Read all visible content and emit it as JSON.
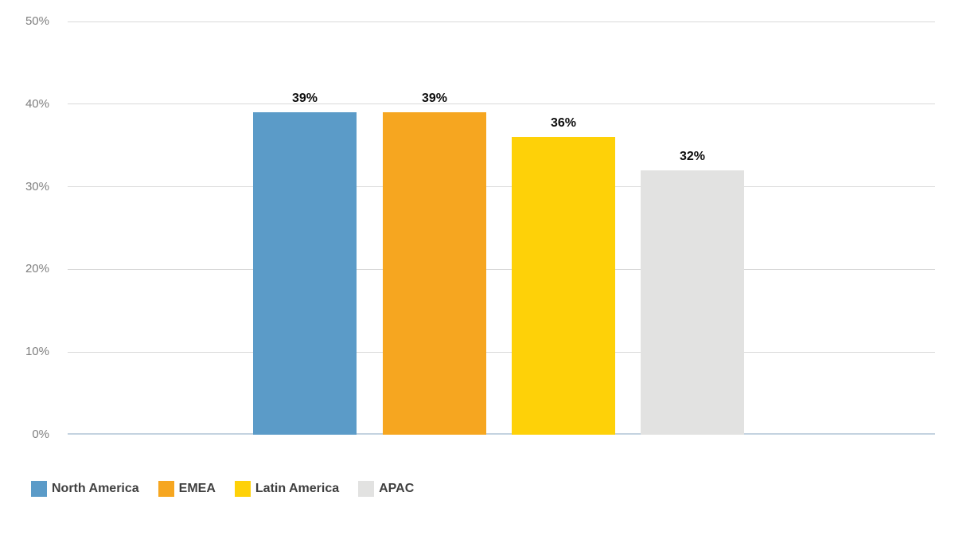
{
  "chart_data": {
    "type": "bar",
    "title": "",
    "xlabel": "",
    "ylabel": "",
    "categories": [
      "North America",
      "EMEA",
      "Latin America",
      "APAC"
    ],
    "values": [
      39,
      39,
      36,
      32
    ],
    "data_labels": [
      "39%",
      "39%",
      "36%",
      "32%"
    ],
    "bar_colors": [
      "#5b9bc8",
      "#f6a620",
      "#fed108",
      "#e2e2e1"
    ],
    "ylim": [
      0,
      50
    ],
    "y_tick_interval": 10,
    "y_tick_labels": [
      "0%",
      "10%",
      "20%",
      "30%",
      "40%",
      "50%"
    ],
    "grid": "on",
    "legend_position": "bottom",
    "legend": [
      {
        "label": "North America",
        "color": "#5b9bc8"
      },
      {
        "label": "EMEA",
        "color": "#f6a620"
      },
      {
        "label": "Latin America",
        "color": "#fed108"
      },
      {
        "label": "APAC",
        "color": "#e2e2e1"
      }
    ]
  },
  "style_colors": {
    "background": "#ffffff",
    "gridline": "#d9d9d9",
    "baseline": "#c4d3e0",
    "tick_label": "#7f7f7f",
    "value_label": "#0d0d0d",
    "legend_label": "#3f3f3f"
  }
}
